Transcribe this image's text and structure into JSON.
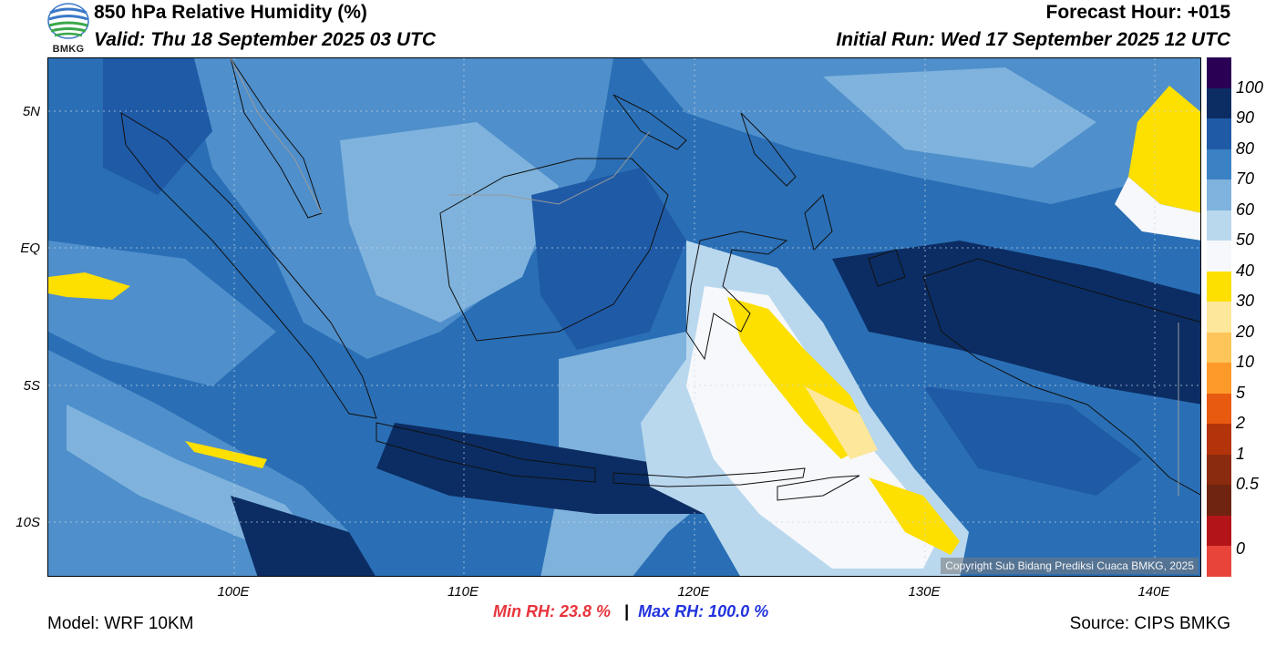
{
  "header": {
    "title": "850 hPa Relative Humidity (%)",
    "valid": "Valid: Thu 18 September 2025 03 UTC",
    "forecast_hour": "Forecast Hour: +015",
    "initial_run": "Initial Run: Wed 17 September 2025 12 UTC",
    "logo_text": "BMKG"
  },
  "map": {
    "lat_labels": [
      "5N",
      "EQ",
      "5S",
      "10S"
    ],
    "lon_labels": [
      "100E",
      "110E",
      "120E",
      "130E",
      "140E"
    ],
    "copyright": "Copyright Sub Bidang Prediksi Cuaca BMKG, 2025"
  },
  "colorbar": {
    "labels": [
      "100",
      "90",
      "80",
      "70",
      "60",
      "50",
      "40",
      "30",
      "20",
      "10",
      "5",
      "2",
      "1",
      "0.5",
      "0"
    ],
    "colors": [
      "#2a0054",
      "#0b2d63",
      "#1f5aa6",
      "#3b82c4",
      "#7fb3dd",
      "#b9d8ee",
      "#f6f8fb",
      "#fddf00",
      "#fde79a",
      "#fdc55a",
      "#fd9a2a",
      "#e75a0f",
      "#b3340a",
      "#8a2a0e",
      "#6e2410",
      "#b3141a",
      "#e8443a"
    ]
  },
  "footer": {
    "model": "Model: WRF 10KM",
    "source": "Source: CIPS BMKG",
    "min_rh": "Min RH:  23.8 %",
    "separator": "|",
    "max_rh": "Max RH: 100.0 %"
  }
}
